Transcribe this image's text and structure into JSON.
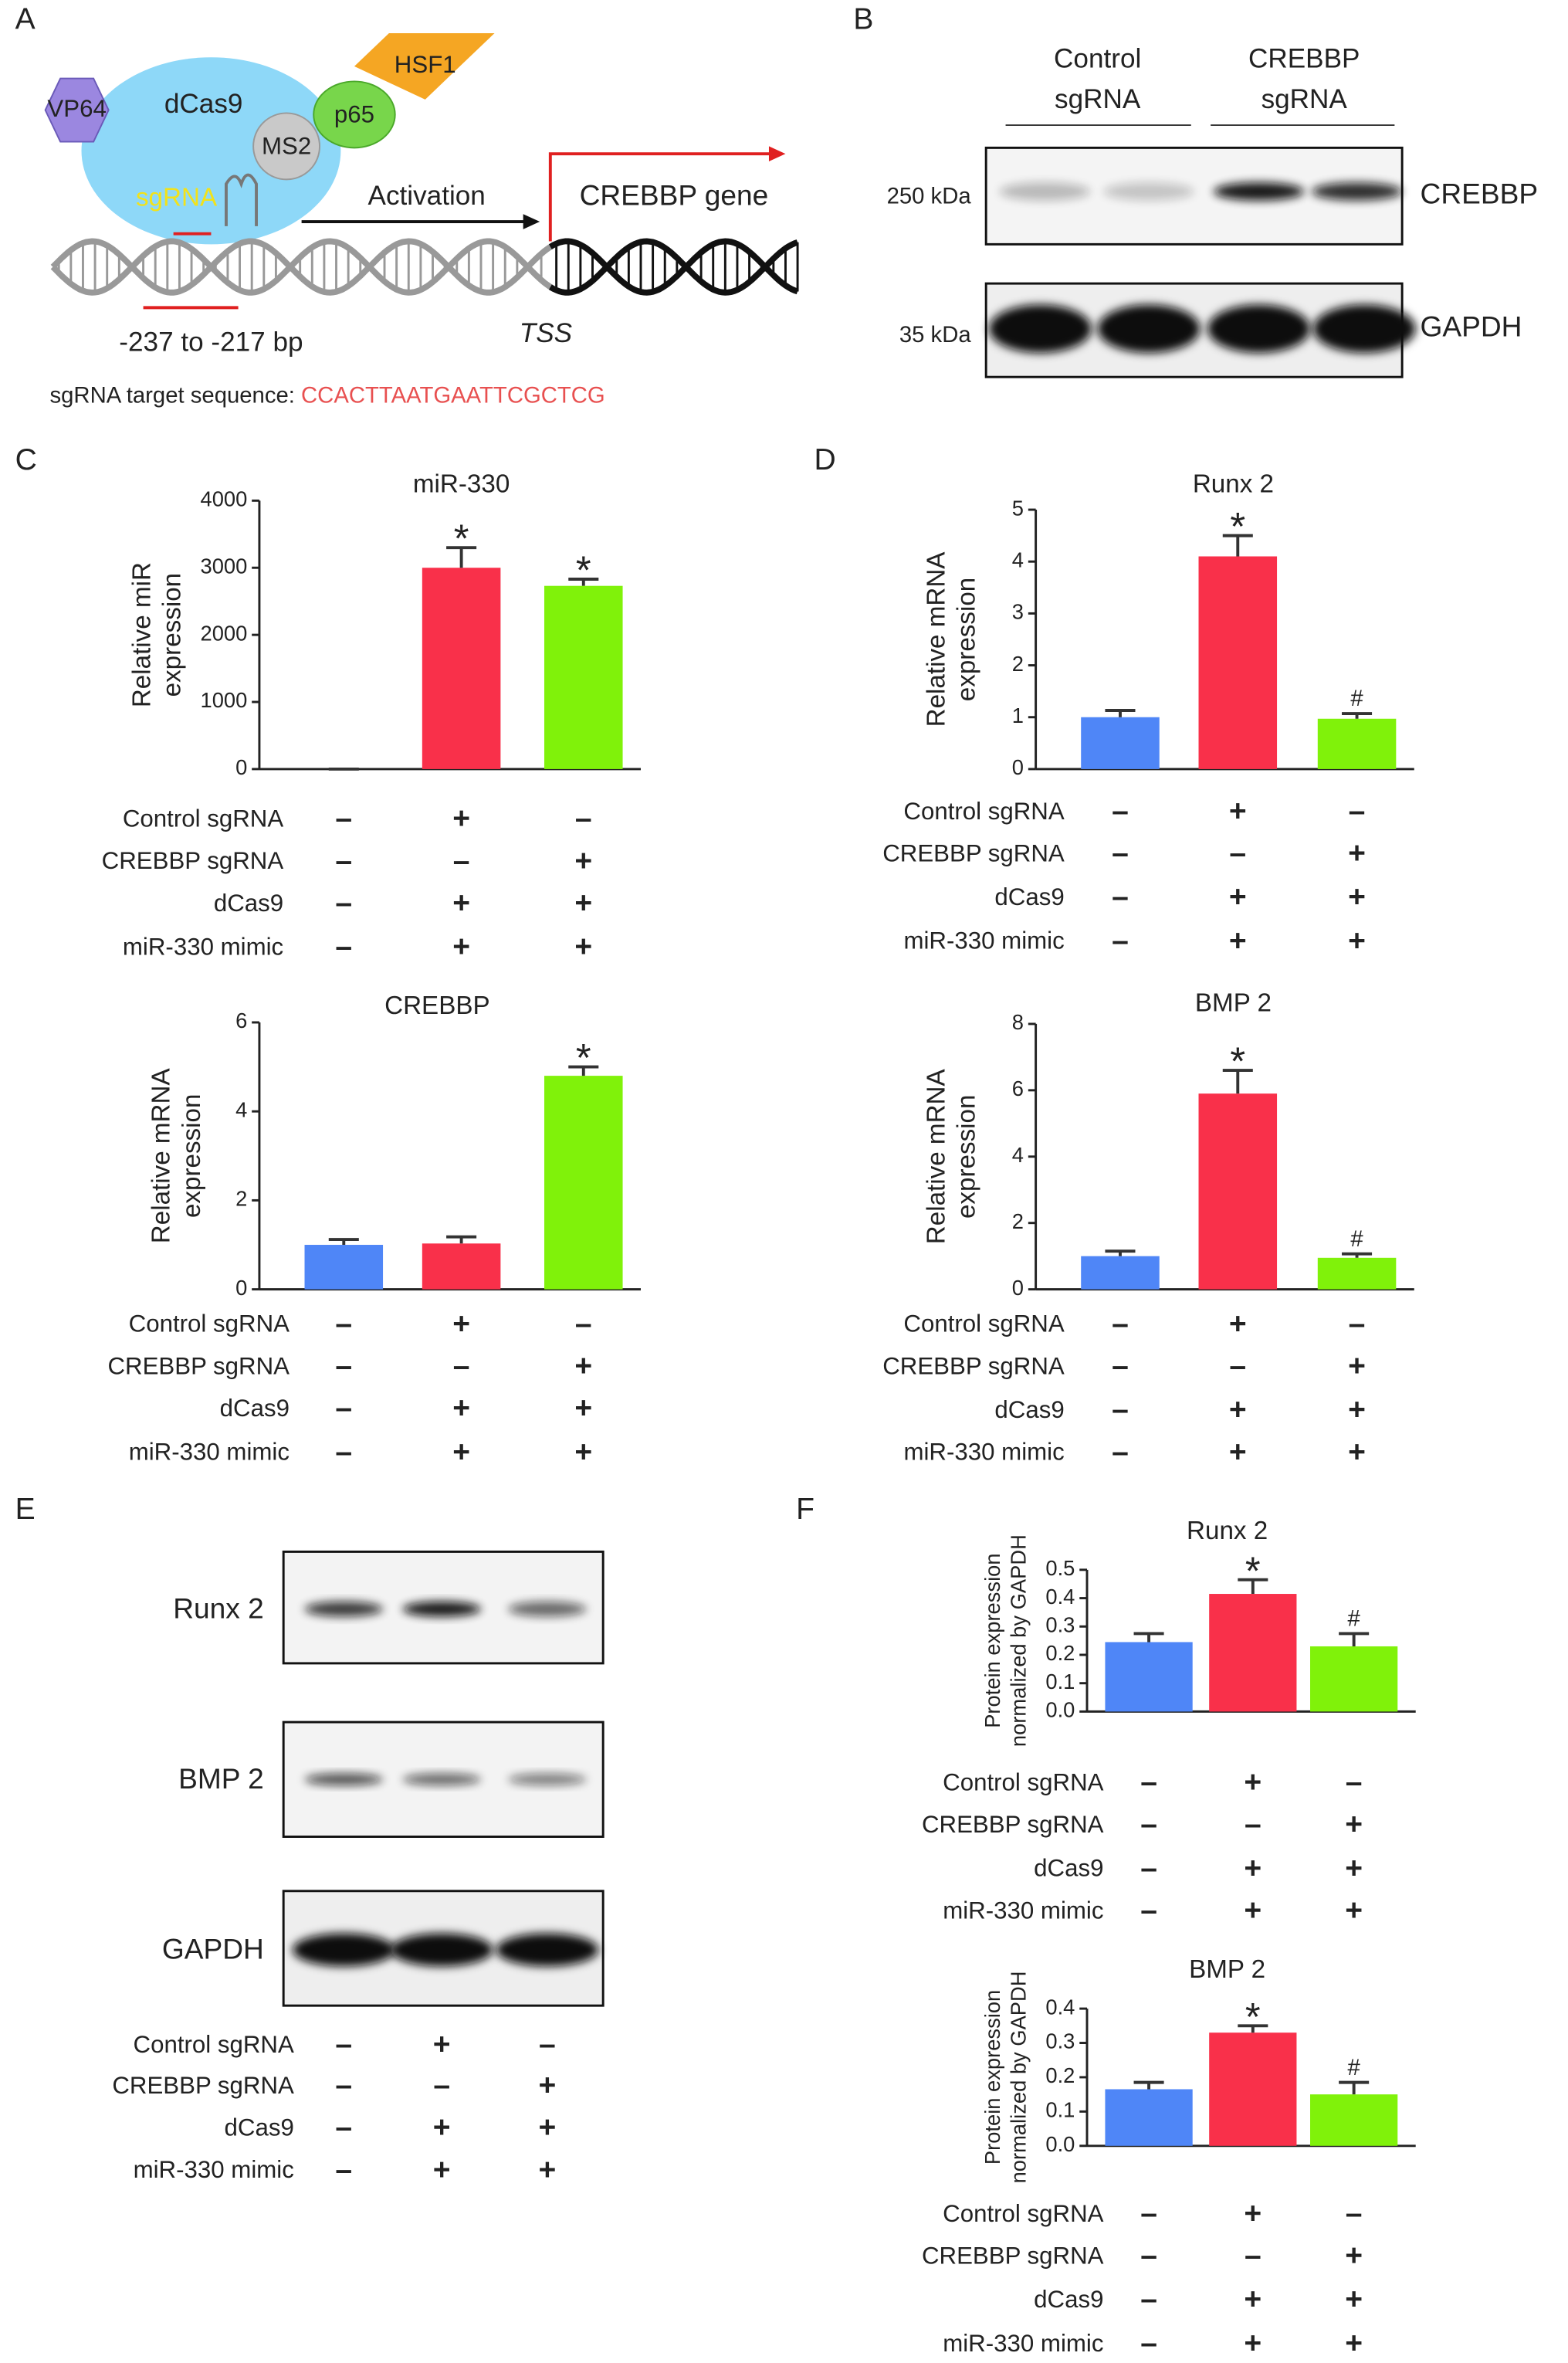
{
  "panel_labels": [
    "A",
    "B",
    "C",
    "D",
    "E",
    "F"
  ],
  "diagram": {
    "vp64": "VP64",
    "dcas9": "dCas9",
    "hsf1": "HSF1",
    "ms2": "MS2",
    "p65": "p65",
    "sgrna": "sgRNA",
    "activation": "Activation",
    "gene": "CREBBP gene",
    "region": "-237 to -217 bp",
    "tss": "TSS",
    "target_prefix": "sgRNA target sequence: ",
    "target_sequence": "CCACTTAATGAATTCGCTCG"
  },
  "blot_b": {
    "lanes": [
      [
        "Control",
        "sgRNA"
      ],
      [
        "CREBBP",
        "sgRNA"
      ]
    ],
    "markers": [
      "250 kDa",
      "35 kDa"
    ],
    "proteins": [
      "CREBBP",
      "GAPDH"
    ]
  },
  "blot_e": {
    "proteins": [
      "Runx 2",
      "BMP 2",
      "GAPDH"
    ],
    "conditions": [
      {
        "label": "Control sgRNA",
        "signs": [
          "–",
          "+",
          "–"
        ]
      },
      {
        "label": "CREBBP sgRNA",
        "signs": [
          "–",
          "–",
          "+"
        ]
      },
      {
        "label": "dCas9",
        "signs": [
          "–",
          "+",
          "+"
        ]
      },
      {
        "label": "miR-330 mimic",
        "signs": [
          "–",
          "+",
          "+"
        ]
      }
    ]
  },
  "chart_data": [
    {
      "type": "bar",
      "title": "miR-330",
      "ylabel": [
        "Relative miR",
        "expression"
      ],
      "categories": [
        null,
        null,
        null
      ],
      "values": [
        0,
        3000,
        2730
      ],
      "errors": [
        0,
        300,
        100
      ],
      "annotations": [
        null,
        "*",
        "*"
      ],
      "colors": [
        "#4f86f7",
        "#f9304a",
        "#80f20a"
      ],
      "ylim": [
        0,
        4000
      ],
      "yticks": [
        0,
        1000,
        2000,
        3000,
        4000
      ],
      "conditions": [
        {
          "label": "Control sgRNA",
          "signs": [
            "–",
            "+",
            "–"
          ]
        },
        {
          "label": "CREBBP sgRNA",
          "signs": [
            "–",
            "–",
            "+"
          ]
        },
        {
          "label": "dCas9",
          "signs": [
            "–",
            "+",
            "+"
          ]
        },
        {
          "label": "miR-330 mimic",
          "signs": [
            "–",
            "+",
            "+"
          ]
        }
      ]
    },
    {
      "type": "bar",
      "title": "CREBBP",
      "ylabel": [
        "Relative mRNA",
        "expression"
      ],
      "categories": [
        null,
        null,
        null
      ],
      "values": [
        1,
        1.03,
        4.8
      ],
      "errors": [
        0.12,
        0.15,
        0.2
      ],
      "annotations": [
        null,
        null,
        "*"
      ],
      "colors": [
        "#4f86f7",
        "#f9304a",
        "#80f20a"
      ],
      "ylim": [
        0,
        6
      ],
      "yticks": [
        0,
        2,
        4,
        6
      ],
      "conditions": [
        {
          "label": "Control sgRNA",
          "signs": [
            "–",
            "+",
            "–"
          ]
        },
        {
          "label": "CREBBP sgRNA",
          "signs": [
            "–",
            "–",
            "+"
          ]
        },
        {
          "label": "dCas9",
          "signs": [
            "–",
            "+",
            "+"
          ]
        },
        {
          "label": "miR-330 mimic",
          "signs": [
            "–",
            "+",
            "+"
          ]
        }
      ]
    },
    {
      "type": "bar",
      "title": "Runx 2",
      "ylabel": [
        "Relative mRNA",
        "expression"
      ],
      "categories": [
        null,
        null,
        null
      ],
      "values": [
        1,
        4.1,
        0.97
      ],
      "errors": [
        0.13,
        0.4,
        0.1
      ],
      "annotations": [
        null,
        "*",
        "#"
      ],
      "colors": [
        "#4f86f7",
        "#f9304a",
        "#80f20a"
      ],
      "ylim": [
        0,
        5
      ],
      "yticks": [
        0,
        1,
        2,
        3,
        4,
        5
      ],
      "conditions": [
        {
          "label": "Control sgRNA",
          "signs": [
            "–",
            "+",
            "–"
          ]
        },
        {
          "label": "CREBBP sgRNA",
          "signs": [
            "–",
            "–",
            "+"
          ]
        },
        {
          "label": "dCas9",
          "signs": [
            "–",
            "+",
            "+"
          ]
        },
        {
          "label": "miR-330 mimic",
          "signs": [
            "–",
            "+",
            "+"
          ]
        }
      ]
    },
    {
      "type": "bar",
      "title": "BMP 2",
      "ylabel": [
        "Relative mRNA",
        "expression"
      ],
      "categories": [
        null,
        null,
        null
      ],
      "values": [
        1,
        5.9,
        0.95
      ],
      "errors": [
        0.15,
        0.7,
        0.12
      ],
      "annotations": [
        null,
        "*",
        "#"
      ],
      "colors": [
        "#4f86f7",
        "#f9304a",
        "#80f20a"
      ],
      "ylim": [
        0,
        8
      ],
      "yticks": [
        0,
        2,
        4,
        6,
        8
      ],
      "conditions": [
        {
          "label": "Control sgRNA",
          "signs": [
            "–",
            "+",
            "–"
          ]
        },
        {
          "label": "CREBBP sgRNA",
          "signs": [
            "–",
            "–",
            "+"
          ]
        },
        {
          "label": "dCas9",
          "signs": [
            "–",
            "+",
            "+"
          ]
        },
        {
          "label": "miR-330 mimic",
          "signs": [
            "–",
            "+",
            "+"
          ]
        }
      ]
    },
    {
      "type": "bar",
      "title": "Runx 2",
      "ylabel": [
        "Protein expression",
        "normalized by GAPDH"
      ],
      "categories": [
        null,
        null,
        null
      ],
      "values": [
        0.245,
        0.415,
        0.23
      ],
      "errors": [
        0.03,
        0.05,
        0.045
      ],
      "annotations": [
        null,
        "*",
        "#"
      ],
      "colors": [
        "#4f86f7",
        "#f9304a",
        "#80f20a"
      ],
      "ylim": [
        0,
        0.5
      ],
      "yticks": [
        {
          "value": 0,
          "label": "0.0"
        },
        0.1,
        0.2,
        0.3,
        0.4,
        0.5
      ],
      "conditions": [
        {
          "label": "Control sgRNA",
          "signs": [
            "–",
            "+",
            "–"
          ]
        },
        {
          "label": "CREBBP sgRNA",
          "signs": [
            "–",
            "–",
            "+"
          ]
        },
        {
          "label": "dCas9",
          "signs": [
            "–",
            "+",
            "+"
          ]
        },
        {
          "label": "miR-330 mimic",
          "signs": [
            "–",
            "+",
            "+"
          ]
        }
      ]
    },
    {
      "type": "bar",
      "title": "BMP 2",
      "ylabel": [
        "Protein expression",
        "normalized by GAPDH"
      ],
      "categories": [
        null,
        null,
        null
      ],
      "values": [
        0.165,
        0.33,
        0.15
      ],
      "errors": [
        0.02,
        0.02,
        0.035
      ],
      "annotations": [
        null,
        "*",
        "#"
      ],
      "colors": [
        "#4f86f7",
        "#f9304a",
        "#80f20a"
      ],
      "ylim": [
        0,
        0.4
      ],
      "yticks": [
        {
          "value": 0,
          "label": "0.0"
        },
        0.1,
        0.2,
        0.3,
        0.4
      ],
      "conditions": [
        {
          "label": "Control sgRNA",
          "signs": [
            "–",
            "+",
            "–"
          ]
        },
        {
          "label": "CREBBP sgRNA",
          "signs": [
            "–",
            "–",
            "+"
          ]
        },
        {
          "label": "dCas9",
          "signs": [
            "–",
            "+",
            "+"
          ]
        },
        {
          "label": "miR-330 mimic",
          "signs": [
            "–",
            "+",
            "+"
          ]
        }
      ]
    }
  ]
}
